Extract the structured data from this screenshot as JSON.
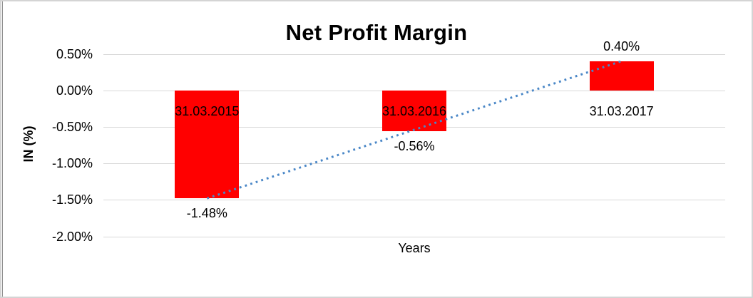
{
  "window": {
    "background": "#ffffff",
    "border_color": "#d4d4d4",
    "left_accent_color": "#8f8f8f"
  },
  "chart_data": {
    "type": "bar",
    "title": "Net Profit Margin",
    "xlabel": "Years",
    "ylabel": "IN (%)",
    "categories": [
      "31.03.2015",
      "31.03.2016",
      "31.03.2017"
    ],
    "values": [
      -1.48,
      -0.56,
      0.4
    ],
    "data_labels": [
      "-1.48%",
      "-0.56%",
      "0.40%"
    ],
    "bar_color": "#ff0000",
    "text_color": "#000000",
    "gridline_color": "#d9d9d9",
    "grid": true,
    "legend": "none",
    "ylim": [
      -2.0,
      0.5
    ],
    "y_ticks": [
      {
        "value": 0.5,
        "label": "0.50%"
      },
      {
        "value": 0.0,
        "label": "0.00%"
      },
      {
        "value": -0.5,
        "label": "-0.50%"
      },
      {
        "value": -1.0,
        "label": "-1.00%"
      },
      {
        "value": -1.5,
        "label": "-1.50%"
      },
      {
        "value": -2.0,
        "label": "-2.00%"
      }
    ],
    "trendline": {
      "type": "linear",
      "style": "dotted",
      "color": "#4a87c7",
      "from": {
        "category_index": 0,
        "value": -1.48
      },
      "to": {
        "category_index": 2,
        "value": 0.4
      }
    }
  }
}
